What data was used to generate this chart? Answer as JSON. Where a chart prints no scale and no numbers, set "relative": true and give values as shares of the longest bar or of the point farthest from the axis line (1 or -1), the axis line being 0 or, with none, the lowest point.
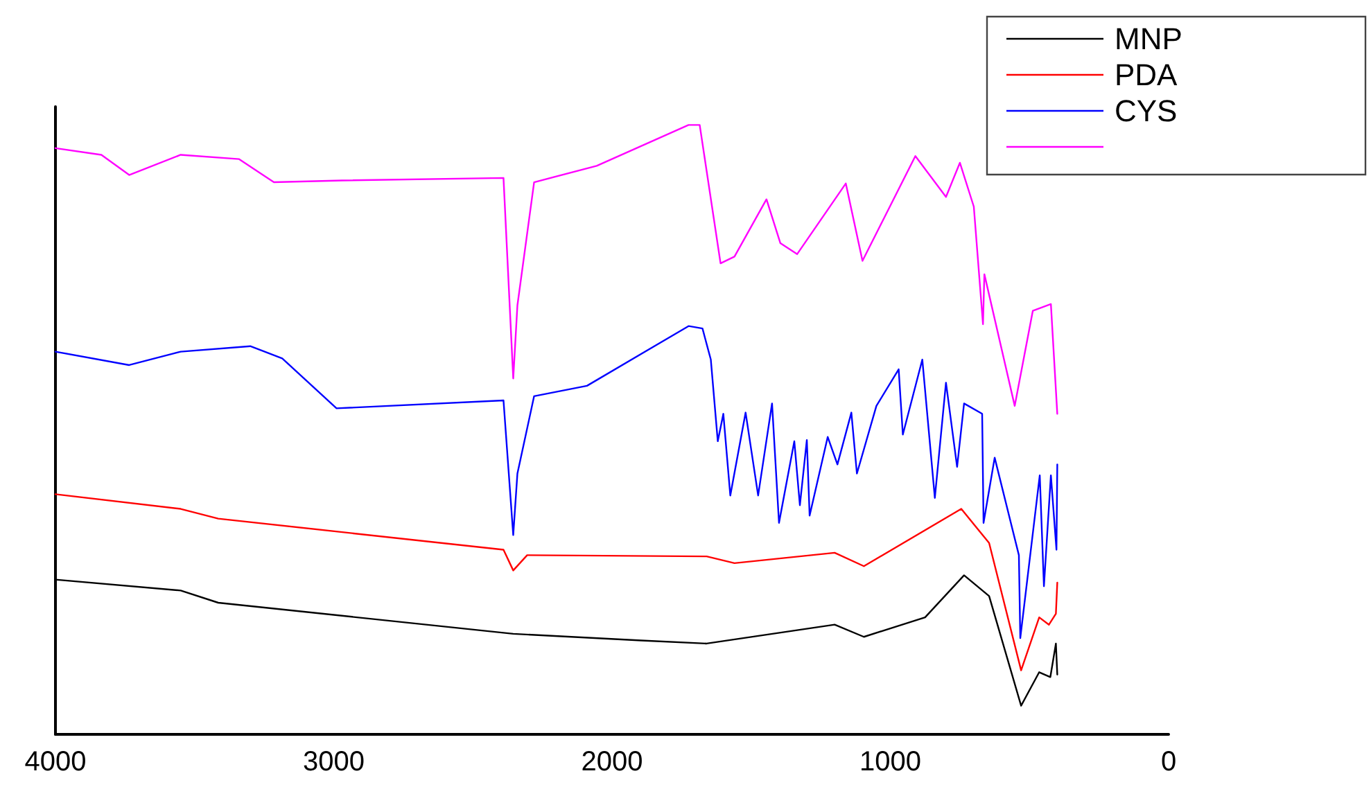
{
  "chart_data": {
    "type": "line",
    "relative": true,
    "xlim": [
      4000,
      0
    ],
    "xticks": [
      4000,
      3000,
      2000,
      1000,
      0
    ],
    "legend": "top right",
    "grid": false,
    "marker": "none",
    "line_style": "solid",
    "series": [
      {
        "name": "MNP",
        "color": "#000000",
        "x": [
          4000,
          3550,
          3415,
          2355,
          1895,
          1660,
          1200,
          1095,
          875,
          735,
          645,
          530,
          465,
          425,
          405,
          400
        ],
        "values": [
          0.254,
          0.236,
          0.216,
          0.165,
          0.154,
          0.149,
          0.18,
          0.16,
          0.192,
          0.261,
          0.227,
          0.047,
          0.102,
          0.094,
          0.149,
          0.098
        ]
      },
      {
        "name": "PDA",
        "color": "#ff0000",
        "x": [
          4000,
          3550,
          3415,
          2390,
          2355,
          2305,
          1660,
          1560,
          1200,
          1095,
          745,
          645,
          530,
          465,
          430,
          405,
          400
        ],
        "values": [
          0.394,
          0.37,
          0.354,
          0.303,
          0.269,
          0.294,
          0.292,
          0.281,
          0.298,
          0.276,
          0.37,
          0.314,
          0.105,
          0.192,
          0.18,
          0.198,
          0.249
        ]
      },
      {
        "name": "CYS",
        "color": "#0000ff",
        "x": [
          4000,
          3735,
          3550,
          3300,
          3185,
          2990,
          2390,
          2355,
          2340,
          2280,
          2090,
          1725,
          1675,
          1645,
          1620,
          1600,
          1575,
          1520,
          1475,
          1425,
          1400,
          1345,
          1325,
          1300,
          1290,
          1225,
          1190,
          1140,
          1120,
          1050,
          970,
          955,
          885,
          840,
          800,
          760,
          735,
          670,
          665,
          625,
          538,
          533,
          463,
          448,
          423,
          403,
          400
        ],
        "values": [
          0.628,
          0.606,
          0.628,
          0.637,
          0.617,
          0.535,
          0.548,
          0.327,
          0.428,
          0.555,
          0.572,
          0.67,
          0.666,
          0.615,
          0.481,
          0.526,
          0.392,
          0.528,
          0.392,
          0.543,
          0.347,
          0.481,
          0.376,
          0.483,
          0.359,
          0.488,
          0.443,
          0.528,
          0.428,
          0.539,
          0.599,
          0.492,
          0.615,
          0.388,
          0.577,
          0.439,
          0.543,
          0.526,
          0.347,
          0.454,
          0.294,
          0.158,
          0.425,
          0.243,
          0.425,
          0.303,
          0.443
        ]
      },
      {
        "color": "#ff00ff",
        "x": [
          4000,
          3835,
          3735,
          3550,
          3340,
          3215,
          2970,
          2390,
          2355,
          2340,
          2280,
          2055,
          1725,
          1685,
          1610,
          1560,
          1445,
          1395,
          1335,
          1160,
          1100,
          910,
          800,
          750,
          700,
          667,
          662,
          553,
          488,
          423,
          400
        ],
        "values": [
          0.962,
          0.951,
          0.918,
          0.951,
          0.944,
          0.906,
          0.909,
          0.913,
          0.584,
          0.704,
          0.906,
          0.933,
          1,
          1,
          0.773,
          0.784,
          0.878,
          0.806,
          0.788,
          0.904,
          0.777,
          0.949,
          0.882,
          0.938,
          0.866,
          0.673,
          0.755,
          0.539,
          0.695,
          0.706,
          0.526
        ]
      }
    ]
  }
}
